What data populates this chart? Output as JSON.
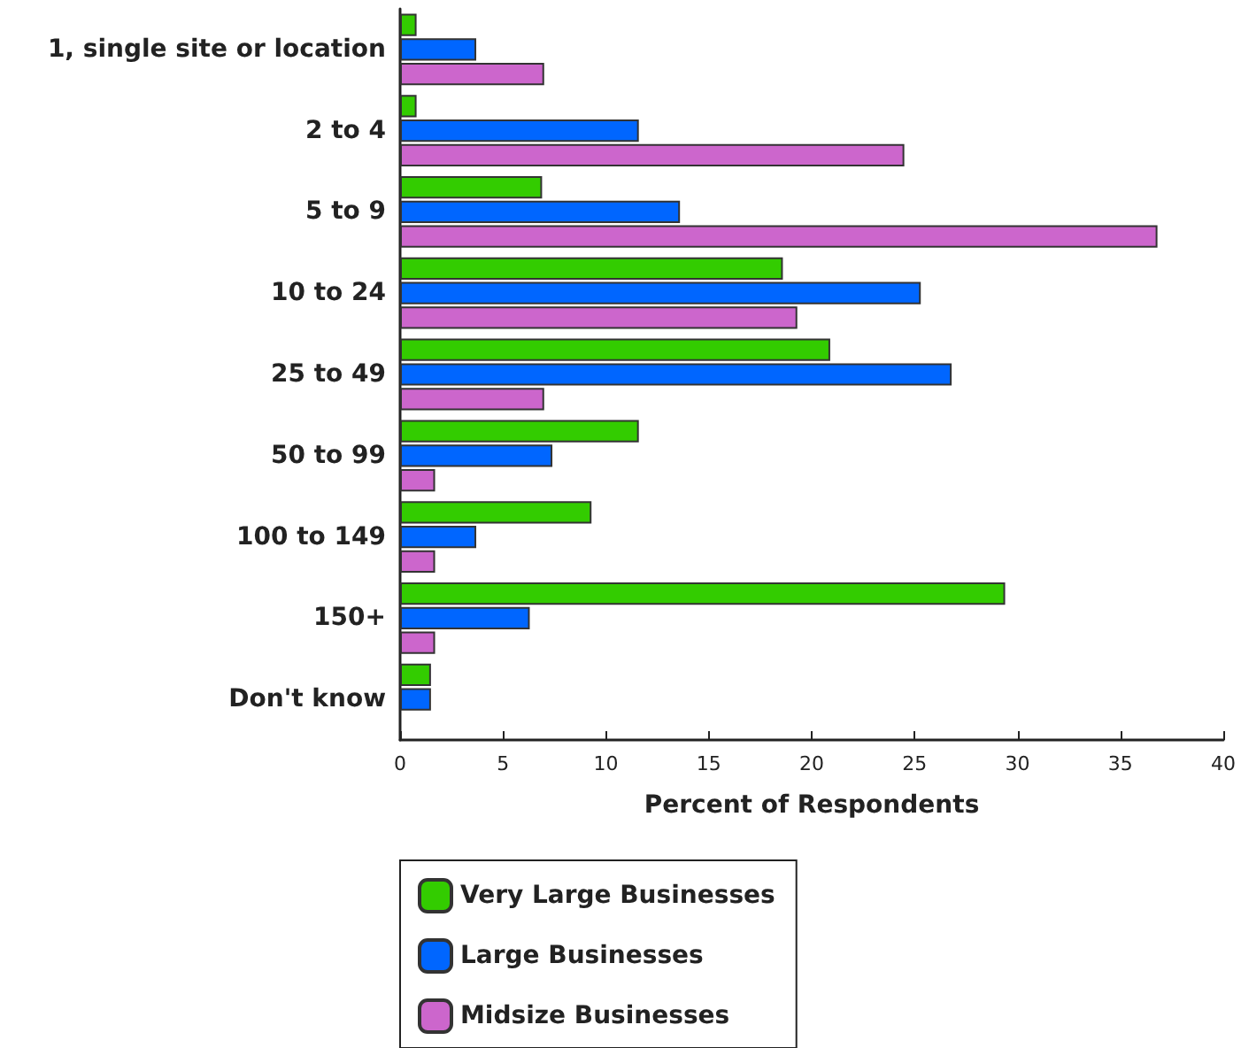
{
  "chart_data": {
    "type": "bar",
    "orientation": "horizontal",
    "xlabel": "Percent of Respondents",
    "categories": [
      "1, single site or location",
      "2 to 4",
      "5 to 9",
      "10 to 24",
      "25 to 49",
      "50 to 99",
      "100 to 149",
      "150+",
      "Don't know"
    ],
    "series": [
      {
        "name": "Very Large Businesses",
        "color": "#33cc00",
        "values": [
          0.8,
          0.8,
          6.9,
          18.6,
          20.9,
          11.6,
          9.3,
          29.4,
          1.5
        ]
      },
      {
        "name": "Large Businesses",
        "color": "#0066ff",
        "values": [
          3.7,
          11.6,
          13.6,
          25.3,
          26.8,
          7.4,
          3.7,
          6.3,
          1.5
        ]
      },
      {
        "name": "Midsize Businesses",
        "color": "#cc66cc",
        "values": [
          7.0,
          24.5,
          36.8,
          19.3,
          7.0,
          1.7,
          1.7,
          1.7,
          null
        ]
      }
    ],
    "xlim": [
      0,
      40
    ],
    "xticks": [
      0,
      5,
      10,
      15,
      20,
      25,
      30,
      35,
      40
    ],
    "grid": false,
    "legend": "bottom"
  }
}
